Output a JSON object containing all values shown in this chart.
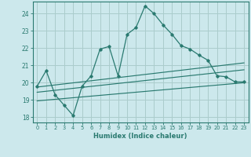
{
  "xlabel": "Humidex (Indice chaleur)",
  "bg_color": "#cce8ec",
  "grid_color": "#aacccc",
  "line_color": "#2a7a70",
  "xlim": [
    -0.5,
    23.5
  ],
  "ylim": [
    17.7,
    24.7
  ],
  "yticks": [
    18,
    19,
    20,
    21,
    22,
    23,
    24
  ],
  "xticks": [
    0,
    1,
    2,
    3,
    4,
    5,
    6,
    7,
    8,
    9,
    10,
    11,
    12,
    13,
    14,
    15,
    16,
    17,
    18,
    19,
    20,
    21,
    22,
    23
  ],
  "main_line_x": [
    0,
    1,
    2,
    3,
    4,
    5,
    6,
    7,
    8,
    9,
    10,
    11,
    12,
    13,
    14,
    15,
    16,
    17,
    18,
    19,
    20,
    21,
    22,
    23
  ],
  "main_line_y": [
    19.8,
    20.7,
    19.3,
    18.7,
    18.1,
    19.8,
    20.4,
    21.95,
    22.1,
    20.4,
    22.8,
    23.2,
    24.45,
    24.0,
    23.35,
    22.8,
    22.15,
    21.95,
    21.6,
    21.3,
    20.4,
    20.35,
    20.05,
    20.05
  ],
  "line2_x": [
    0,
    23
  ],
  "line2_y": [
    19.75,
    21.15
  ],
  "line3_x": [
    0,
    23
  ],
  "line3_y": [
    19.45,
    20.75
  ],
  "line4_x": [
    0,
    23
  ],
  "line4_y": [
    18.95,
    20.0
  ]
}
